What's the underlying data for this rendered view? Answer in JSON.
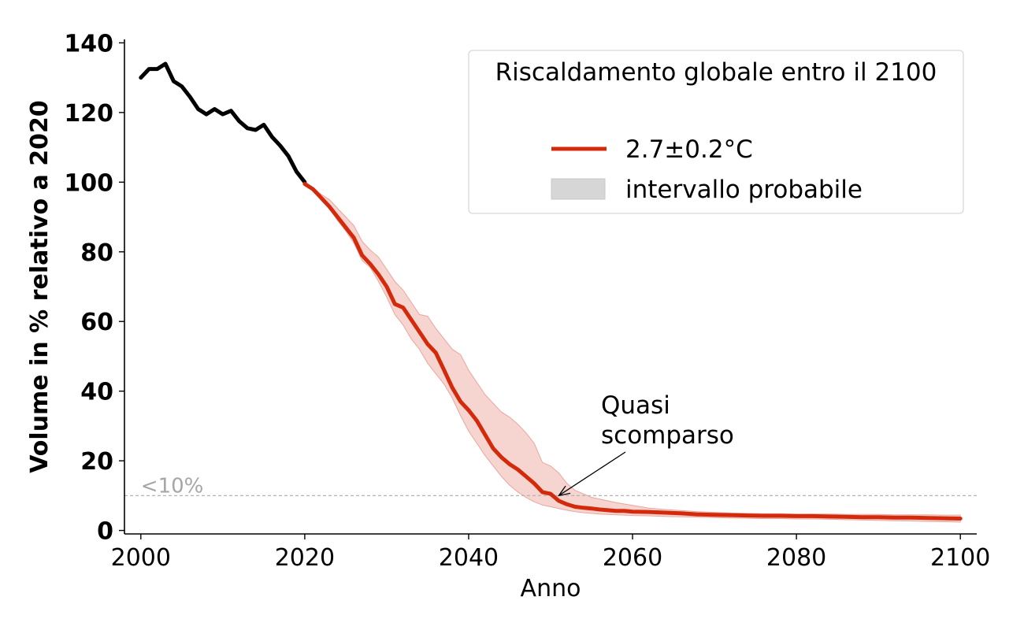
{
  "chart_data": {
    "type": "line",
    "xlabel": "Anno",
    "ylabel": "Volume in % relativo a 2020",
    "xlim": [
      1998,
      2102
    ],
    "ylim": [
      -1,
      141
    ],
    "xticks": [
      2000,
      2020,
      2040,
      2060,
      2080,
      2100
    ],
    "yticks": [
      0,
      20,
      40,
      60,
      80,
      100,
      120,
      140
    ],
    "threshold": {
      "y": 10,
      "label": "<10%",
      "color": "#b3b3b3"
    },
    "annotation": {
      "lines": [
        "Quasi",
        "scomparso"
      ],
      "x": 2051,
      "y": 10
    },
    "legend": {
      "title": "Riscaldamento globale entro il 2100",
      "placement": "top-right",
      "entries": [
        "2.7±0.2°C",
        "intervallo probabile"
      ]
    },
    "historical": {
      "color": "#000000",
      "x": [
        2000,
        2001,
        2002,
        2003,
        2004,
        2005,
        2006,
        2007,
        2008,
        2009,
        2010,
        2011,
        2012,
        2013,
        2014,
        2015,
        2016,
        2017,
        2018,
        2019,
        2020
      ],
      "y": [
        130,
        132.5,
        132.5,
        134,
        129,
        127.5,
        124.5,
        121,
        119.5,
        121,
        119.5,
        120.5,
        117.5,
        115.5,
        115,
        116.5,
        113,
        110.5,
        107.5,
        103,
        100
      ]
    },
    "series": [
      {
        "name": "2.7±0.2°C",
        "color": "#d42a0c",
        "band_color": "#f3c5c0",
        "x": [
          2020,
          2021,
          2022,
          2023,
          2024,
          2025,
          2026,
          2027,
          2028,
          2029,
          2030,
          2031,
          2032,
          2033,
          2034,
          2035,
          2036,
          2037,
          2038,
          2039,
          2040,
          2041,
          2042,
          2043,
          2044,
          2045,
          2046,
          2047,
          2048,
          2049,
          2050,
          2051,
          2052,
          2053,
          2054,
          2055,
          2056,
          2057,
          2058,
          2059,
          2060,
          2062,
          2064,
          2066,
          2068,
          2070,
          2072,
          2074,
          2076,
          2078,
          2080,
          2082,
          2084,
          2086,
          2088,
          2090,
          2092,
          2094,
          2096,
          2098,
          2100
        ],
        "y": [
          99.5,
          98,
          95.5,
          93,
          90,
          87,
          84,
          79,
          76.5,
          73.5,
          70,
          65,
          64,
          60.5,
          57,
          53.5,
          51,
          46,
          41,
          37,
          34.5,
          31.5,
          27.5,
          23.5,
          21,
          19,
          17.5,
          15.5,
          13.5,
          11,
          10.5,
          8.5,
          7.5,
          6.8,
          6.5,
          6.3,
          6,
          5.8,
          5.6,
          5.6,
          5.4,
          5.3,
          5.1,
          4.9,
          4.6,
          4.5,
          4.4,
          4.3,
          4.2,
          4.2,
          4.1,
          4.1,
          4,
          3.9,
          3.8,
          3.8,
          3.7,
          3.7,
          3.6,
          3.5,
          3.4
        ],
        "lower": [
          99.5,
          98,
          95,
          92.5,
          89,
          86,
          82.5,
          77.5,
          75.5,
          71.5,
          67,
          62,
          59,
          55,
          52,
          48,
          45,
          42,
          38,
          33,
          28.5,
          25,
          21.5,
          18.5,
          15.5,
          13,
          11,
          9.5,
          8.2,
          7.3,
          6.8,
          6.3,
          5.8,
          5.4,
          5.1,
          4.9,
          4.7,
          4.6,
          4.5,
          4.4,
          4.3,
          4.2,
          4,
          3.9,
          3.8,
          3.7,
          3.6,
          3.5,
          3.4,
          3.4,
          3.3,
          3.3,
          3.2,
          3.1,
          3,
          2.9,
          2.8,
          2.7,
          2.6,
          2.5,
          2.4
        ],
        "upper": [
          99.5,
          98.5,
          96.5,
          95,
          92.5,
          90,
          87.5,
          83,
          80.5,
          78.5,
          75,
          71.5,
          69,
          65.5,
          62,
          61.5,
          58,
          55,
          52,
          50.5,
          46,
          42.5,
          39,
          36.5,
          34,
          32.5,
          30.5,
          28,
          25,
          19.5,
          18.5,
          16.5,
          13.5,
          11.5,
          10.5,
          9.5,
          9,
          8.5,
          8,
          7.6,
          7.2,
          6.4,
          6,
          5.7,
          5.4,
          5.2,
          5,
          4.9,
          4.8,
          4.8,
          4.7,
          4.7,
          4.7,
          4.6,
          4.6,
          4.6,
          4.5,
          4.5,
          4.5,
          4.4,
          4.4
        ]
      }
    ]
  }
}
